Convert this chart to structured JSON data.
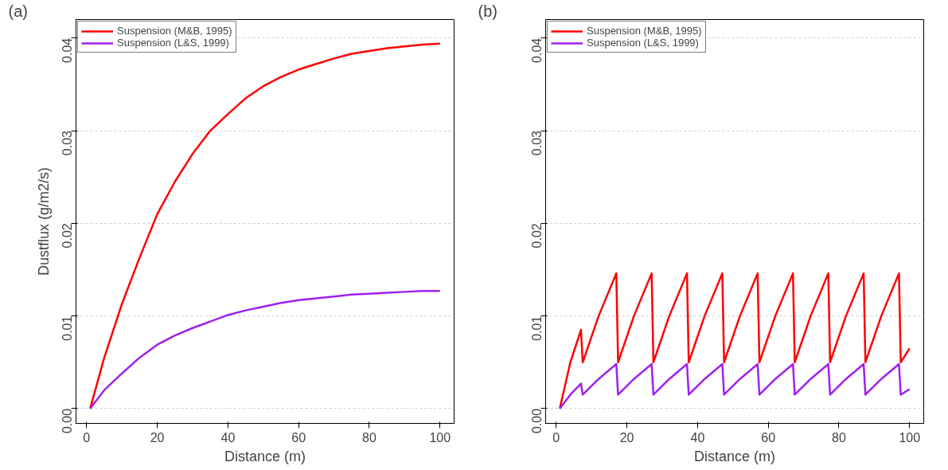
{
  "chart_data": [
    {
      "type": "line",
      "xlabel": "Distance (m)",
      "ylabel": "Dustflux (g/m2/s)",
      "annotations": [
        "(a)"
      ],
      "xlim": [
        -3,
        104
      ],
      "ylim": [
        -0.0016,
        0.042
      ],
      "xticks": [
        0,
        20,
        40,
        60,
        80,
        100
      ],
      "yticks": [
        {
          "value": 0,
          "label": "0.00"
        },
        {
          "value": 0.01,
          "label": "0.01"
        },
        {
          "value": 0.02,
          "label": "0.02"
        },
        {
          "value": 0.03,
          "label": "0.03"
        },
        {
          "value": 0.04,
          "label": "0.04"
        }
      ],
      "grid": "y",
      "legend": "top left",
      "line_style": "solid",
      "x": [
        1,
        5,
        10,
        15,
        20,
        25,
        30,
        35,
        40,
        45,
        50,
        55,
        60,
        65,
        70,
        75,
        80,
        85,
        90,
        95,
        100
      ],
      "series": [
        {
          "name": "Suspension (M&B, 1995)",
          "color": "#ff0000",
          "values": [
            0,
            0.0055,
            0.0113,
            0.0163,
            0.021,
            0.0245,
            0.0275,
            0.03,
            0.0318,
            0.0335,
            0.0348,
            0.0358,
            0.0366,
            0.0372,
            0.0378,
            0.0383,
            0.0386,
            0.0389,
            0.0391,
            0.0393,
            0.0394
          ]
        },
        {
          "name": "Suspension (L&S, 1999)",
          "color": "#a020f0",
          "values": [
            0,
            0.002,
            0.0038,
            0.0055,
            0.0069,
            0.0079,
            0.0087,
            0.0094,
            0.0101,
            0.0106,
            0.011,
            0.0114,
            0.0117,
            0.0119,
            0.0121,
            0.0123,
            0.0124,
            0.0125,
            0.0126,
            0.0127,
            0.0127
          ]
        }
      ]
    },
    {
      "type": "line",
      "xlabel": "Distance (m)",
      "annotations": [
        "(b)"
      ],
      "xlim": [
        -3,
        104
      ],
      "ylim": [
        -0.0016,
        0.042
      ],
      "xticks": [
        0,
        20,
        40,
        60,
        80,
        100
      ],
      "yticks": [
        {
          "value": 0,
          "label": "0.00"
        },
        {
          "value": 0.01,
          "label": "0.01"
        },
        {
          "value": 0.02,
          "label": "0.02"
        },
        {
          "value": 0.03,
          "label": "0.03"
        },
        {
          "value": 0.04,
          "label": "0.04"
        }
      ],
      "grid": "y",
      "legend": "top left",
      "line_style": "solid",
      "x": [
        1,
        4,
        7,
        7.5,
        12,
        17,
        17.5,
        22,
        27,
        27.5,
        32,
        37,
        37.5,
        42,
        47,
        47.5,
        52,
        57,
        57.5,
        62,
        67,
        67.5,
        72,
        77,
        77.5,
        82,
        87,
        87.5,
        92,
        97,
        97.5,
        100
      ],
      "series": [
        {
          "name": "Suspension (M&B, 1995)",
          "color": "#ff0000",
          "values": [
            0,
            0.005,
            0.0085,
            0.005,
            0.01,
            0.0146,
            0.005,
            0.01,
            0.0146,
            0.005,
            0.01,
            0.0146,
            0.005,
            0.01,
            0.0146,
            0.005,
            0.01,
            0.0146,
            0.005,
            0.01,
            0.0146,
            0.005,
            0.01,
            0.0146,
            0.005,
            0.01,
            0.0146,
            0.005,
            0.01,
            0.0146,
            0.005,
            0.0065
          ]
        },
        {
          "name": "Suspension (L&S, 1999)",
          "color": "#a020f0",
          "values": [
            0,
            0.0015,
            0.0027,
            0.0015,
            0.0032,
            0.0048,
            0.0015,
            0.0032,
            0.0048,
            0.0015,
            0.0032,
            0.0048,
            0.0015,
            0.0032,
            0.0048,
            0.0015,
            0.0032,
            0.0048,
            0.0015,
            0.0032,
            0.0048,
            0.0015,
            0.0032,
            0.0048,
            0.0015,
            0.0032,
            0.0048,
            0.0015,
            0.0032,
            0.0048,
            0.0015,
            0.0021
          ]
        }
      ]
    }
  ]
}
